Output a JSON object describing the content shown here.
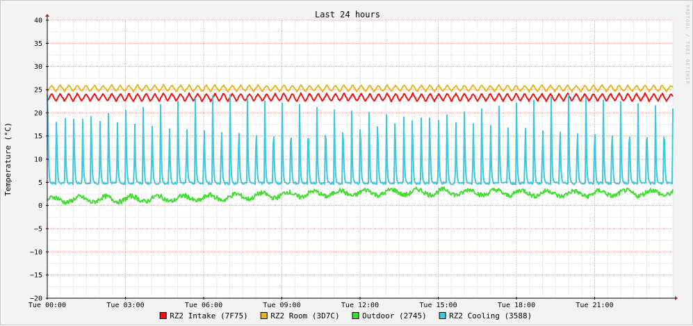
{
  "chart_data": {
    "type": "line",
    "title": "Last 24 hours",
    "xlabel": "",
    "ylabel": "Temperature (°C)",
    "ylim": [
      -20,
      40
    ],
    "yticks": [
      -20,
      -15,
      -10,
      -5,
      0,
      5,
      10,
      15,
      20,
      25,
      30,
      35,
      40
    ],
    "xlim_hours": [
      0,
      24
    ],
    "xticks": [
      {
        "hour": 0,
        "label": "Tue 00:00"
      },
      {
        "hour": 3,
        "label": "Tue 03:00"
      },
      {
        "hour": 6,
        "label": "Tue 06:00"
      },
      {
        "hour": 9,
        "label": "Tue 09:00"
      },
      {
        "hour": 12,
        "label": "Tue 12:00"
      },
      {
        "hour": 15,
        "label": "Tue 15:00"
      },
      {
        "hour": 18,
        "label": "Tue 18:00"
      },
      {
        "hour": 21,
        "label": "Tue 21:00"
      }
    ],
    "grid": true,
    "legend_position": "bottom",
    "watermark": "RRDTOOL / TOBI OETIKER",
    "series": [
      {
        "name": "RZ2 Intake (7F75)",
        "color": "#ee1111",
        "pattern": {
          "kind": "oscillation",
          "min": 22.5,
          "max": 24.2,
          "period_hours": 0.33
        }
      },
      {
        "name": "RZ2 Room (3D7C)",
        "color": "#e2b824",
        "pattern": {
          "kind": "oscillation",
          "min": 24.6,
          "max": 26.0,
          "period_hours": 0.33
        }
      },
      {
        "name": "Outdoor (2745)",
        "color": "#44dd33",
        "pattern": {
          "kind": "noisy",
          "start": 1.2,
          "end": 2.8,
          "peak": 4.5
        }
      },
      {
        "name": "RZ2 Cooling (3588)",
        "color": "#3ec8dd",
        "pattern": {
          "kind": "spikes",
          "base": 4.8,
          "peak": 24.0,
          "period_hours": 0.333
        }
      }
    ]
  }
}
